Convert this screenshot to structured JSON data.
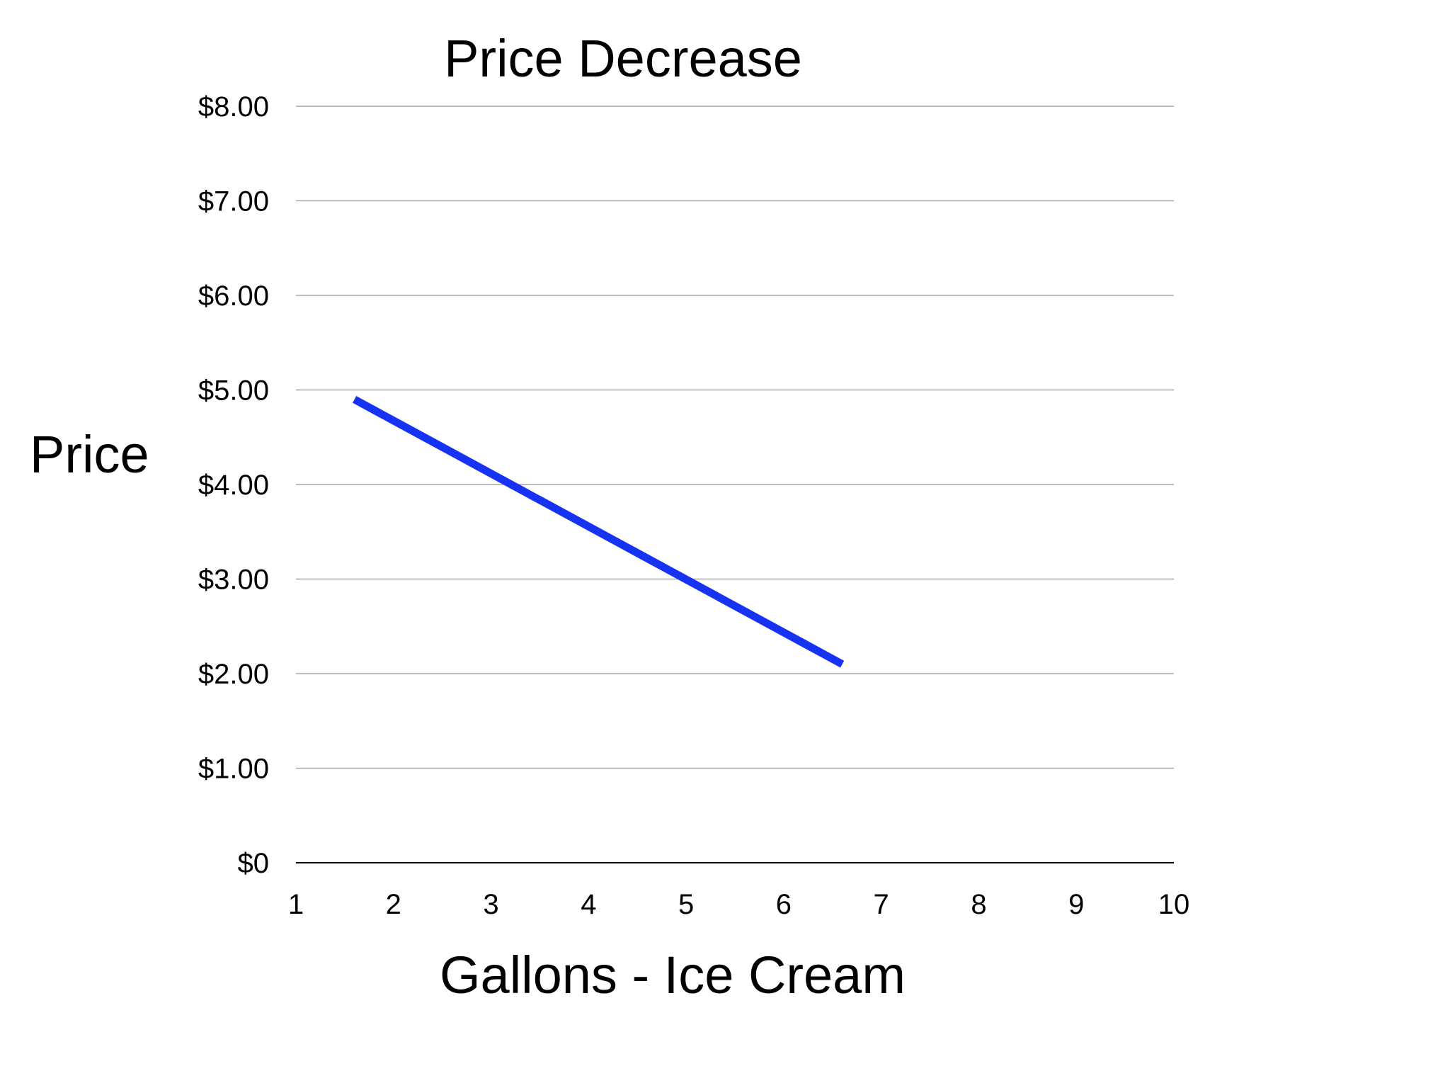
{
  "chart_data": {
    "type": "line",
    "title": "Price Decrease",
    "xlabel": "Gallons - Ice Cream",
    "ylabel": "Price",
    "x_ticks": [
      "1",
      "2",
      "3",
      "4",
      "5",
      "6",
      "7",
      "8",
      "9",
      "10"
    ],
    "x_range": [
      1,
      10
    ],
    "y_ticks": [
      {
        "value": 0,
        "label": "$0"
      },
      {
        "value": 1,
        "label": "$1.00"
      },
      {
        "value": 2,
        "label": "$2.00"
      },
      {
        "value": 3,
        "label": "$3.00"
      },
      {
        "value": 4,
        "label": "$4.00"
      },
      {
        "value": 5,
        "label": "$5.00"
      },
      {
        "value": 6,
        "label": "$6.00"
      },
      {
        "value": 7,
        "label": "$7.00"
      },
      {
        "value": 8,
        "label": "$8.00"
      }
    ],
    "ylim": [
      0,
      8
    ],
    "grid": "horizontal",
    "legend": "none",
    "series": [
      {
        "color": "#1632f2",
        "points": [
          {
            "x": 1.6,
            "y": 4.9
          },
          {
            "x": 6.6,
            "y": 2.1
          }
        ]
      }
    ],
    "colors": {
      "gridline": "#a6a6a6",
      "baseline": "#000000",
      "text": "#000000"
    }
  }
}
